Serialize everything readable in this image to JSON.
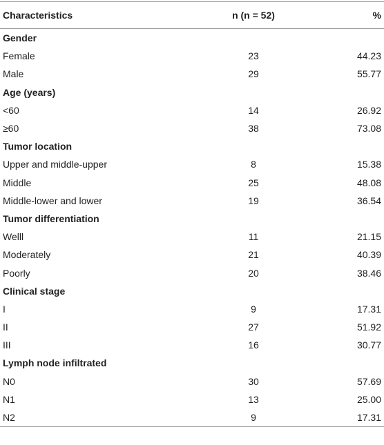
{
  "table": {
    "header": [
      "Characteristics",
      "n (n = 52)",
      "%"
    ],
    "sections": [
      {
        "title": "Gender",
        "rows": [
          [
            "Female",
            "23",
            "44.23"
          ],
          [
            "Male",
            "29",
            "55.77"
          ]
        ]
      },
      {
        "title": "Age (years)",
        "rows": [
          [
            "<60",
            "14",
            "26.92"
          ],
          [
            "≥60",
            "38",
            "73.08"
          ]
        ]
      },
      {
        "title": "Tumor location",
        "rows": [
          [
            "Upper and middle-upper",
            "8",
            "15.38"
          ],
          [
            "Middle",
            "25",
            "48.08"
          ],
          [
            "Middle-lower and lower",
            "19",
            "36.54"
          ]
        ]
      },
      {
        "title": "Tumor differentiation",
        "rows": [
          [
            "Welll",
            "11",
            "21.15"
          ],
          [
            "Moderately",
            "21",
            "40.39"
          ],
          [
            "Poorly",
            "20",
            "38.46"
          ]
        ]
      },
      {
        "title": "Clinical stage",
        "rows": [
          [
            "I",
            "9",
            "17.31"
          ],
          [
            "II",
            "27",
            "51.92"
          ],
          [
            "III",
            "16",
            "30.77"
          ]
        ]
      },
      {
        "title": "Lymph node infiltrated",
        "rows": [
          [
            "N0",
            "30",
            "57.69"
          ],
          [
            "N1",
            "13",
            "25.00"
          ],
          [
            "N2",
            "9",
            "17.31"
          ]
        ]
      }
    ]
  }
}
